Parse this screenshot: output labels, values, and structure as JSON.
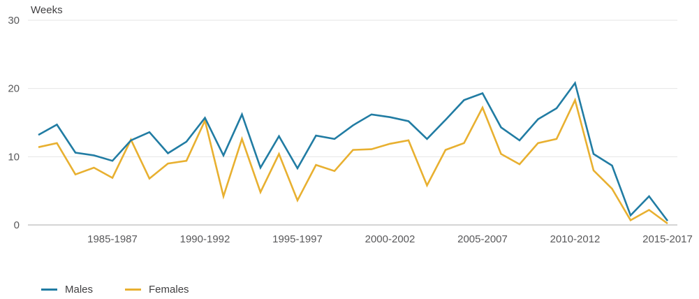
{
  "chart_data": {
    "type": "line",
    "title": "",
    "ylabel": "Weeks",
    "xlabel": "",
    "ylim": [
      0,
      30
    ],
    "yticks": [
      0,
      10,
      20,
      30
    ],
    "grid": true,
    "legend_position": "bottom-left",
    "categories": [
      "1981-1983",
      "1982-1984",
      "1983-1985",
      "1984-1986",
      "1985-1987",
      "1986-1988",
      "1987-1989",
      "1988-1990",
      "1989-1991",
      "1990-1992",
      "1991-1993",
      "1992-1994",
      "1993-1995",
      "1994-1996",
      "1995-1997",
      "1996-1998",
      "1997-1999",
      "1998-2000",
      "1999-2001",
      "2000-2002",
      "2001-2003",
      "2002-2004",
      "2003-2005",
      "2004-2006",
      "2005-2007",
      "2006-2008",
      "2007-2009",
      "2008-2010",
      "2009-2011",
      "2010-2012",
      "2011-2013",
      "2012-2014",
      "2013-2015",
      "2014-2016",
      "2015-2017"
    ],
    "x_ticks": [
      {
        "index": 4,
        "label": "1985-1987"
      },
      {
        "index": 9,
        "label": "1990-1992"
      },
      {
        "index": 14,
        "label": "1995-1997"
      },
      {
        "index": 19,
        "label": "2000-2002"
      },
      {
        "index": 24,
        "label": "2005-2007"
      },
      {
        "index": 29,
        "label": "2010-2012"
      },
      {
        "index": 34,
        "label": "2015-2017"
      }
    ],
    "series": [
      {
        "name": "Males",
        "color": "#217ca3",
        "values": [
          13.2,
          14.7,
          10.6,
          10.2,
          9.4,
          12.4,
          13.6,
          10.5,
          12.2,
          15.7,
          10.2,
          16.2,
          8.4,
          13.0,
          8.3,
          13.1,
          12.6,
          14.6,
          16.2,
          15.8,
          15.2,
          12.6,
          15.4,
          18.3,
          19.3,
          14.3,
          12.4,
          15.5,
          17.1,
          20.8,
          10.4,
          8.7,
          1.4,
          4.2,
          0.6
        ]
      },
      {
        "name": "Females",
        "color": "#e8b030",
        "values": [
          11.4,
          12.0,
          7.4,
          8.4,
          6.9,
          12.5,
          6.8,
          9.0,
          9.4,
          15.3,
          4.2,
          12.6,
          4.8,
          10.4,
          3.6,
          8.8,
          7.9,
          11.0,
          11.1,
          11.9,
          12.4,
          5.8,
          11.0,
          12.0,
          17.2,
          10.4,
          8.9,
          12.0,
          12.6,
          18.3,
          8.0,
          5.3,
          0.7,
          2.2,
          0.2
        ]
      }
    ]
  },
  "colors": {
    "grid_line": "#e6e6e6",
    "axis_line": "#a8a8a8",
    "tick_text": "#58585a",
    "label_text": "#414042",
    "background": "#ffffff"
  }
}
